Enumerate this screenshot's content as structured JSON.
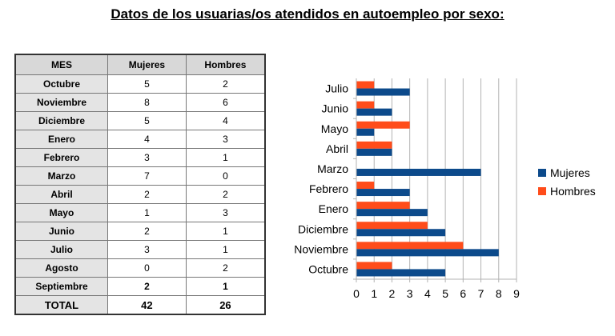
{
  "title": "Datos de los usuarias/os atendidos en autoempleo por sexo:",
  "table": {
    "headers": [
      "MES",
      "Mujeres",
      "Hombres"
    ],
    "rows": [
      {
        "month": "Octubre",
        "mujeres": "5",
        "hombres": "2"
      },
      {
        "month": "Noviembre",
        "mujeres": "8",
        "hombres": "6"
      },
      {
        "month": "Diciembre",
        "mujeres": "5",
        "hombres": "4"
      },
      {
        "month": "Enero",
        "mujeres": "4",
        "hombres": "3"
      },
      {
        "month": "Febrero",
        "mujeres": "3",
        "hombres": "1"
      },
      {
        "month": "Marzo",
        "mujeres": "7",
        "hombres": "0"
      },
      {
        "month": "Abril",
        "mujeres": "2",
        "hombres": "2"
      },
      {
        "month": "Mayo",
        "mujeres": "1",
        "hombres": "3"
      },
      {
        "month": "Junio",
        "mujeres": "2",
        "hombres": "1"
      },
      {
        "month": "Julio",
        "mujeres": "3",
        "hombres": "1"
      },
      {
        "month": "Agosto",
        "mujeres": "0",
        "hombres": "2"
      },
      {
        "month": "Septiembre",
        "mujeres": "2",
        "hombres": "1"
      }
    ],
    "total": {
      "month": "TOTAL",
      "mujeres": "42",
      "hombres": "26"
    }
  },
  "chart_data": {
    "type": "bar",
    "orientation": "horizontal",
    "categories": [
      "Octubre",
      "Noviembre",
      "Diciembre",
      "Enero",
      "Febrero",
      "Marzo",
      "Abril",
      "Mayo",
      "Junio",
      "Julio"
    ],
    "series": [
      {
        "name": "Mujeres",
        "color": "#0c4a8b",
        "values": [
          5,
          8,
          5,
          4,
          3,
          7,
          2,
          1,
          2,
          3
        ]
      },
      {
        "name": "Hombres",
        "color": "#ff4c1a",
        "values": [
          2,
          6,
          4,
          3,
          1,
          0,
          2,
          3,
          1,
          1
        ]
      }
    ],
    "xlim": [
      0,
      9
    ],
    "x_ticks": [
      "0",
      "1",
      "2",
      "3",
      "4",
      "5",
      "6",
      "7",
      "8",
      "9"
    ],
    "grid": "vertical",
    "legend_position": "right"
  }
}
